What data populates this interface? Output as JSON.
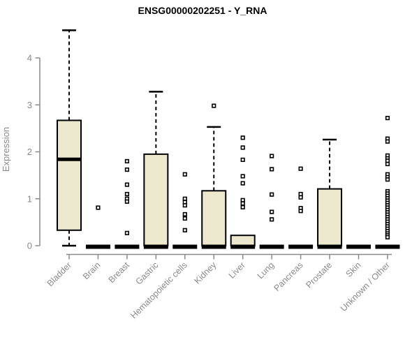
{
  "title": "ENSG00000202251 - Y_RNA",
  "colors": {
    "background": "#ffffff",
    "box_fill": "#ECE8CD",
    "box_border": "#000000",
    "median": "#000000",
    "outlier": "#000000",
    "axis": "#8a8a8a",
    "tick_label": "#8a8a8a",
    "title": "#000000"
  },
  "chart_data": {
    "type": "boxplot",
    "title": "ENSG00000202251 - Y_RNA",
    "xlabel": "",
    "ylabel": "Expression",
    "ylim": [
      0,
      4.6
    ],
    "y_ticks": [
      0,
      1,
      2,
      3,
      4
    ],
    "grid": false,
    "legend": "none",
    "categories": [
      "Bladder",
      "Brain",
      "Breast",
      "Gastric",
      "Hematopoietic cells",
      "Kidney",
      "Liver",
      "Lung",
      "Pancreas",
      "Prostate",
      "Skin",
      "Unknown / Other"
    ],
    "series": [
      {
        "name": "Bladder",
        "low": 0,
        "q1": 0.33,
        "median": 1.84,
        "q3": 2.67,
        "high": 4.59,
        "outliers": []
      },
      {
        "name": "Brain",
        "low": 0,
        "q1": 0,
        "median": 0,
        "q3": 0,
        "high": 0,
        "outliers": [
          0.81
        ]
      },
      {
        "name": "Breast",
        "low": 0,
        "q1": 0,
        "median": 0,
        "q3": 0,
        "high": 0,
        "outliers": [
          1.8,
          1.62,
          1.3,
          1.1,
          1.0,
          0.94,
          0.27
        ]
      },
      {
        "name": "Gastric",
        "low": 0,
        "q1": 0,
        "median": 0,
        "q3": 1.95,
        "high": 3.28,
        "outliers": []
      },
      {
        "name": "Hematopoietic cells",
        "low": 0,
        "q1": 0,
        "median": 0,
        "q3": 0,
        "high": 0,
        "outliers": [
          1.52,
          1.0,
          0.93,
          0.86,
          0.67,
          0.58,
          0.33
        ]
      },
      {
        "name": "Kidney",
        "low": 0,
        "q1": 0,
        "median": 0,
        "q3": 1.17,
        "high": 2.53,
        "outliers": [
          2.98
        ]
      },
      {
        "name": "Liver",
        "low": 0,
        "q1": 0,
        "median": 0,
        "q3": 0.22,
        "high": 0.22,
        "outliers": [
          2.3,
          2.09,
          1.83,
          1.48,
          1.33,
          0.97,
          0.9,
          0.82
        ]
      },
      {
        "name": "Lung",
        "low": 0,
        "q1": 0,
        "median": 0,
        "q3": 0,
        "high": 0,
        "outliers": [
          1.91,
          1.63,
          1.09,
          0.72,
          0.56
        ]
      },
      {
        "name": "Pancreas",
        "low": 0,
        "q1": 0,
        "median": 0,
        "q3": 0,
        "high": 0,
        "outliers": [
          1.64,
          1.1,
          1.03,
          0.8,
          0.74
        ]
      },
      {
        "name": "Prostate",
        "low": 0,
        "q1": 0,
        "median": 0,
        "q3": 1.21,
        "high": 2.26,
        "outliers": []
      },
      {
        "name": "Skin",
        "low": 0,
        "q1": 0,
        "median": 0,
        "q3": 0,
        "high": 0,
        "outliers": []
      },
      {
        "name": "Unknown / Other",
        "low": 0,
        "q1": 0,
        "median": 0,
        "q3": 0,
        "high": 0,
        "outliers": [
          2.72,
          2.28,
          2.22,
          1.92,
          1.86,
          1.81,
          1.74,
          1.52,
          1.46,
          1.41,
          1.16,
          1.11,
          1.06,
          1.01,
          0.96,
          0.91,
          0.86,
          0.81,
          0.76,
          0.71,
          0.66,
          0.61,
          0.56,
          0.51,
          0.46,
          0.41,
          0.36,
          0.31,
          0.26,
          0.22,
          0.18
        ]
      }
    ]
  }
}
